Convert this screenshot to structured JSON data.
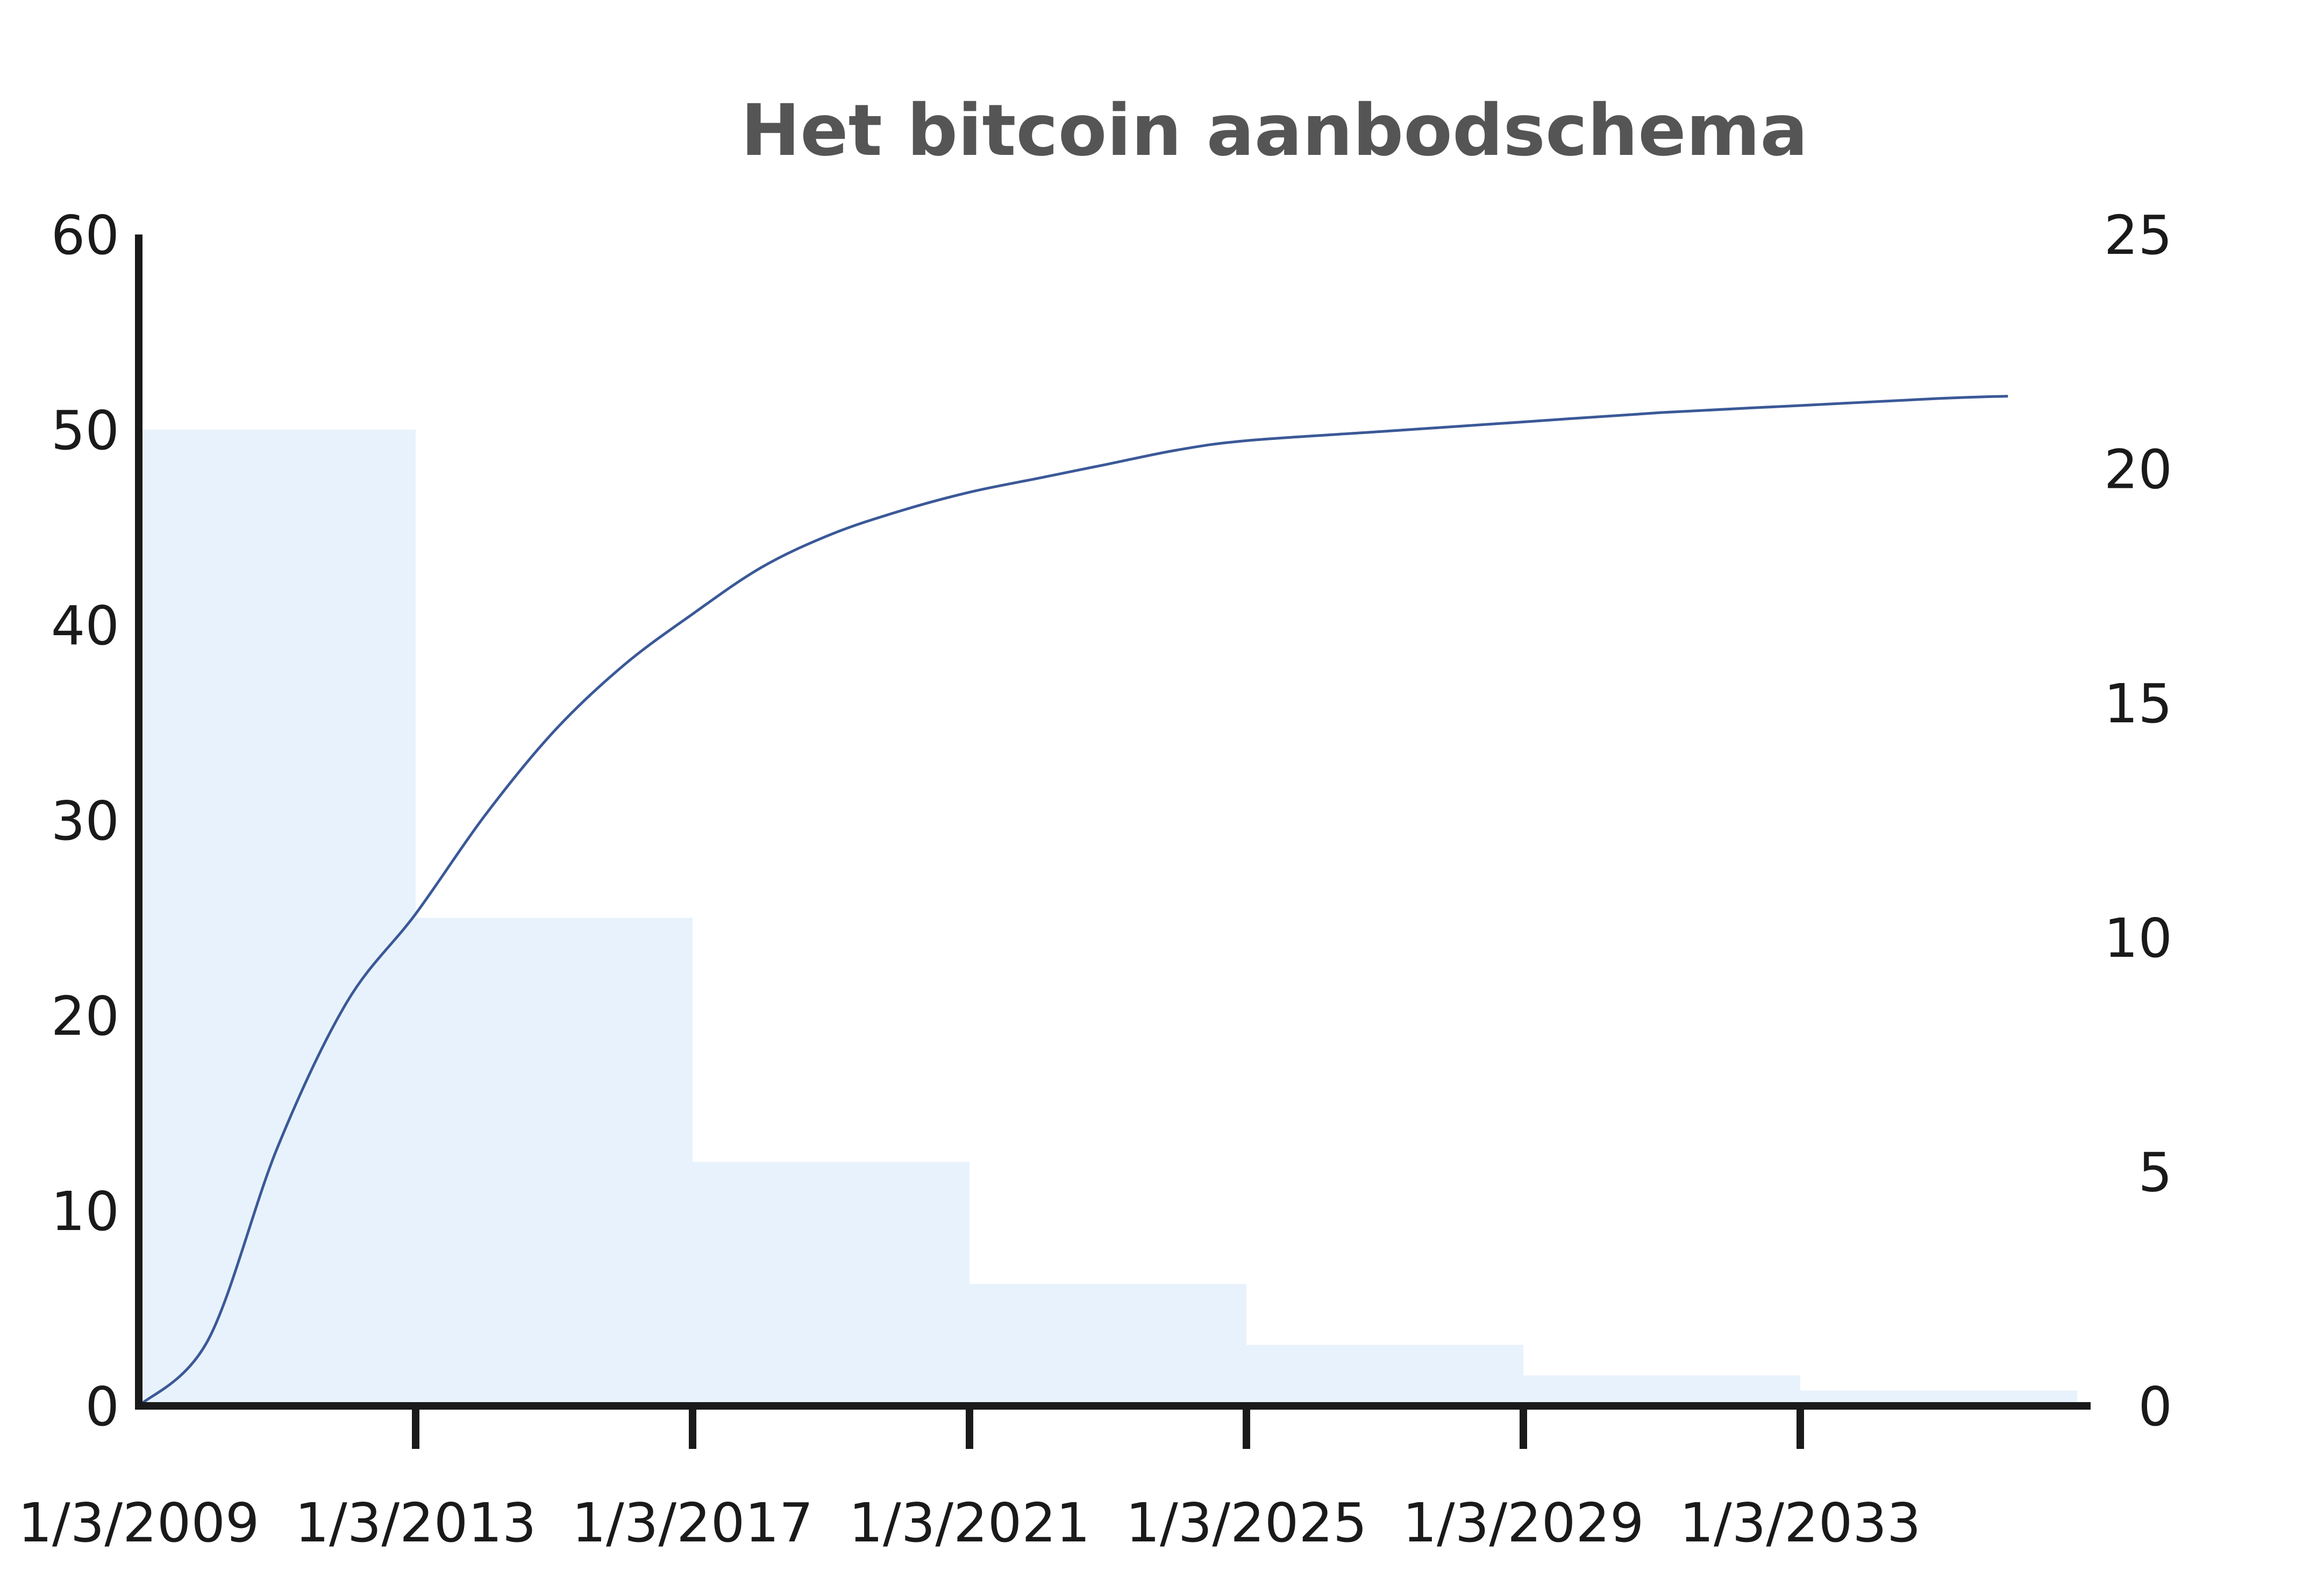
{
  "chart_data": {
    "type": "bar",
    "title": "Het bitcoin aanbodschema",
    "x_tick_labels": [
      "1/3/2009",
      "1/3/2013",
      "1/3/2017",
      "1/3/2021",
      "1/3/2025",
      "1/3/2029",
      "1/3/2033"
    ],
    "ylim_left": [
      0,
      60
    ],
    "y_ticks_left": [
      0,
      10,
      20,
      30,
      40,
      50,
      60
    ],
    "ylim_right": [
      0,
      25
    ],
    "y_ticks_right": [
      0,
      5,
      10,
      15,
      20,
      25
    ],
    "grid": false,
    "legend": "none",
    "series": [
      {
        "type": "bar",
        "axis": "left",
        "color": "#e8f2fc",
        "periods": [
          {
            "start": "1/3/2009",
            "end": "1/3/2013",
            "value": 50
          },
          {
            "start": "1/3/2013",
            "end": "1/3/2017",
            "value": 25
          },
          {
            "start": "1/3/2017",
            "end": "1/3/2021",
            "value": 12.5
          },
          {
            "start": "1/3/2021",
            "end": "1/3/2025",
            "value": 6.25
          },
          {
            "start": "1/3/2025",
            "end": "1/3/2029",
            "value": 3.125
          },
          {
            "start": "1/3/2029",
            "end": "1/3/2033",
            "value": 1.5625
          },
          {
            "start": "1/3/2033",
            "end": "1/3/2037",
            "value": 0.78125
          }
        ]
      },
      {
        "type": "line",
        "axis": "right",
        "color": "#3b5998",
        "points": [
          [
            "1/3/2009",
            0
          ],
          [
            "1/3/2010",
            1.4
          ],
          [
            "1/3/2011",
            5.5
          ],
          [
            "1/3/2012",
            8.6
          ],
          [
            "1/3/2013",
            10.5
          ],
          [
            "1/3/2014",
            12.6
          ],
          [
            "1/3/2015",
            14.4
          ],
          [
            "1/3/2016",
            15.8
          ],
          [
            "1/3/2017",
            16.9
          ],
          [
            "1/3/2018",
            17.9
          ],
          [
            "1/3/2019",
            18.6
          ],
          [
            "1/3/2020",
            19.1
          ],
          [
            "1/3/2021",
            19.5
          ],
          [
            "1/3/2022",
            19.8
          ],
          [
            "1/3/2023",
            20.1
          ],
          [
            "1/3/2024",
            20.4
          ],
          [
            "1/3/2025",
            20.6
          ],
          [
            "1/3/2027",
            20.8
          ],
          [
            "1/3/2029",
            21.0
          ],
          [
            "1/3/2031",
            21.2
          ],
          [
            "1/3/2033",
            21.35
          ],
          [
            "1/3/2035",
            21.5
          ],
          [
            "1/3/2036",
            21.55
          ]
        ]
      }
    ]
  }
}
